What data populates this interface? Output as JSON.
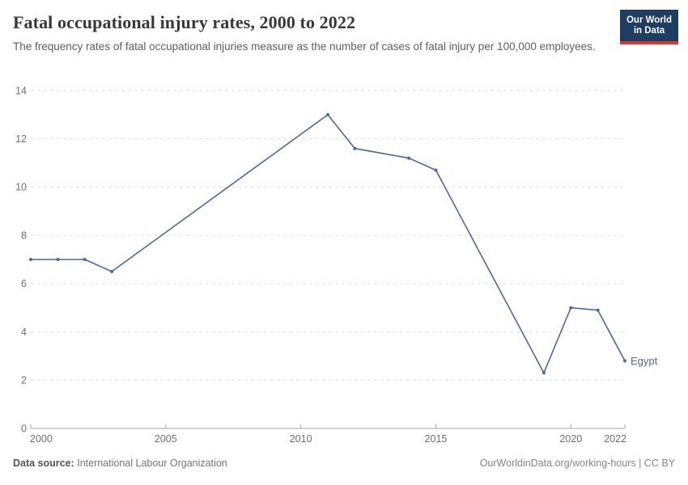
{
  "chart_data": {
    "type": "line",
    "title": "Fatal occupational injury rates, 2000 to 2022",
    "subtitle": "The frequency rates of fatal occupational injuries measure as the number of cases of fatal injury per 100,000 employees.",
    "xlabel": "",
    "ylabel": "",
    "xlim": [
      2000,
      2022
    ],
    "ylim": [
      0,
      14
    ],
    "xticks": [
      2000,
      2005,
      2010,
      2015,
      2020,
      2022
    ],
    "yticks": [
      0,
      2,
      4,
      6,
      8,
      10,
      12,
      14
    ],
    "grid": "horizontal-dashed",
    "legend_position": "series-end-label",
    "series": [
      {
        "name": "Egypt",
        "color": "#4C6A9C",
        "points": [
          [
            2000,
            7.0
          ],
          [
            2001,
            7.0
          ],
          [
            2002,
            7.0
          ],
          [
            2003,
            6.5
          ],
          [
            2011,
            13.0
          ],
          [
            2012,
            11.6
          ],
          [
            2014,
            11.2
          ],
          [
            2015,
            10.7
          ],
          [
            2019,
            2.3
          ],
          [
            2020,
            5.0
          ],
          [
            2021,
            4.9
          ],
          [
            2022,
            2.8
          ]
        ]
      }
    ],
    "colors": {
      "gridline": "#dcdcdc",
      "axis_line": "#a8a8a8",
      "tick_label": "#6e6e6e"
    }
  },
  "logo": {
    "line1": "Our World",
    "line2": "in Data"
  },
  "footer": {
    "source_label": "Data source:",
    "source_value": "International Labour Organization",
    "credit": "OurWorldinData.org/working-hours | CC BY"
  }
}
